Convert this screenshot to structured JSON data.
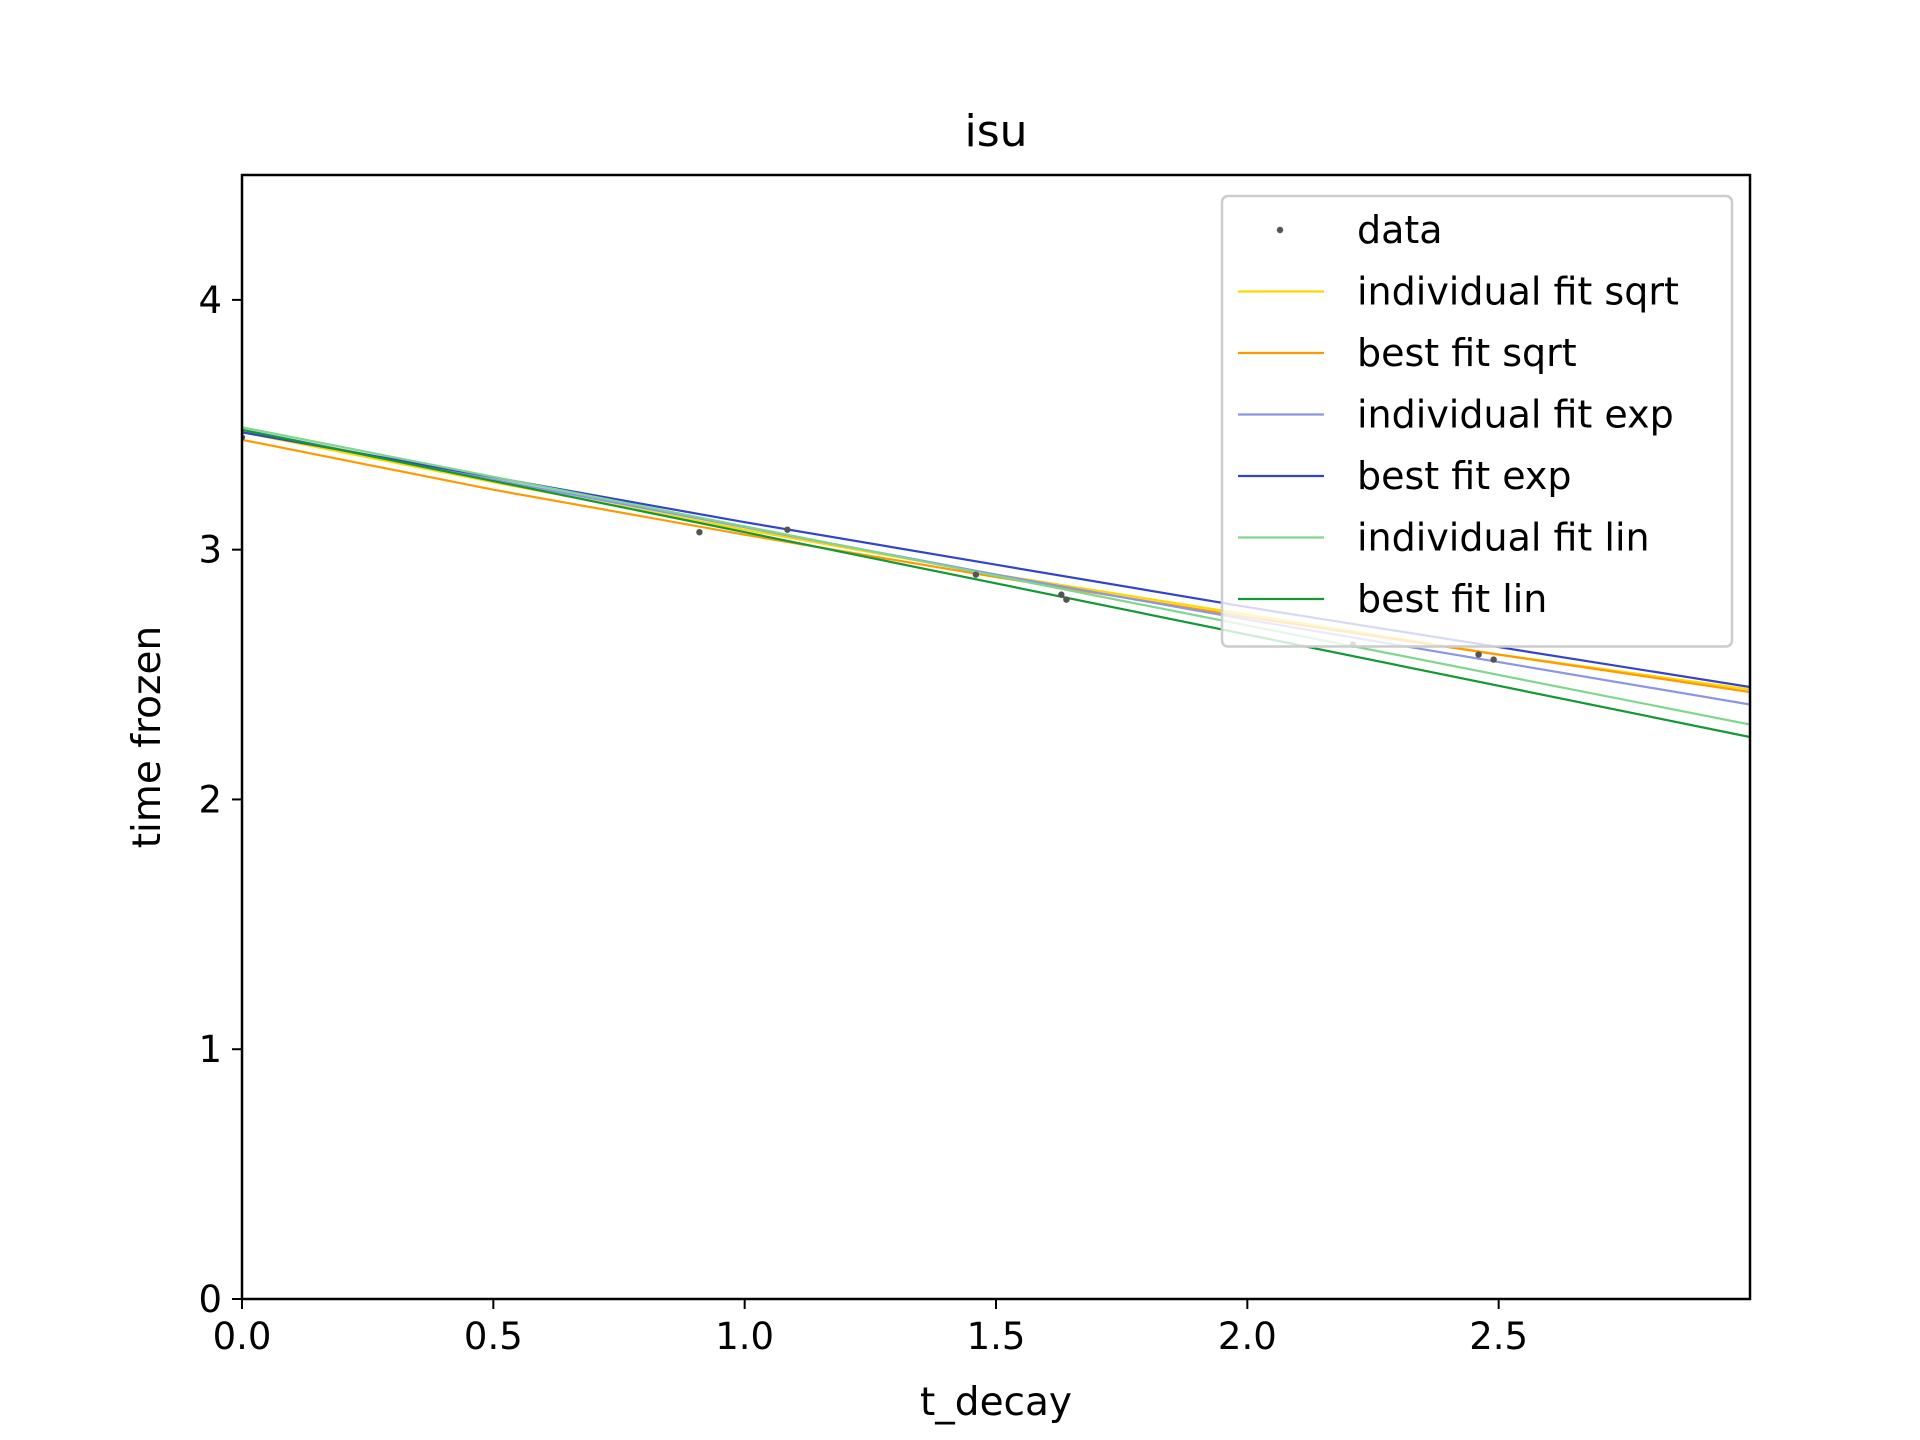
{
  "chart_data": {
    "type": "line",
    "title": "isu",
    "xlabel": "t_decay",
    "ylabel": "time frozen",
    "xlim": [
      0,
      3.0
    ],
    "ylim": [
      0,
      4.5
    ],
    "xticks": [
      "0.0",
      "0.5",
      "1.0",
      "1.5",
      "2.0",
      "2.5"
    ],
    "xtick_values": [
      0,
      0.5,
      1.0,
      1.5,
      2.0,
      2.5
    ],
    "yticks": [
      "0",
      "1",
      "2",
      "3",
      "4"
    ],
    "ytick_values": [
      0,
      1,
      2,
      3,
      4
    ],
    "grid": false,
    "legend_placement": "upper right",
    "data_points": {
      "name": "data",
      "color": "#555555",
      "x": [
        0.0,
        0.91,
        1.085,
        1.46,
        1.63,
        1.64,
        2.21,
        2.46,
        2.49
      ],
      "y": [
        3.45,
        3.07,
        3.08,
        2.9,
        2.82,
        2.8,
        2.62,
        2.58,
        2.56
      ]
    },
    "series": [
      {
        "name": "individual fit sqrt",
        "color": "#ffd700",
        "x": [
          0,
          0.5,
          1.0,
          1.5,
          2.0,
          2.5,
          3.0
        ],
        "y": [
          3.47,
          3.27,
          3.08,
          2.9,
          2.74,
          2.58,
          2.44
        ]
      },
      {
        "name": "best fit sqrt",
        "color": "#ff9900",
        "x": [
          0,
          0.5,
          1.0,
          1.5,
          2.0,
          2.5,
          3.0
        ],
        "y": [
          3.44,
          3.24,
          3.06,
          2.89,
          2.73,
          2.58,
          2.43
        ]
      },
      {
        "name": "individual fit exp",
        "color": "#8c96e6",
        "x": [
          0,
          0.5,
          1.0,
          1.5,
          2.0,
          2.5,
          3.0
        ],
        "y": [
          3.48,
          3.28,
          3.09,
          2.9,
          2.72,
          2.55,
          2.38
        ]
      },
      {
        "name": "best fit exp",
        "color": "#3344cc",
        "x": [
          0,
          0.5,
          1.0,
          1.5,
          2.0,
          2.5,
          3.0
        ],
        "y": [
          3.47,
          3.29,
          3.11,
          2.94,
          2.77,
          2.61,
          2.45
        ]
      },
      {
        "name": "individual fit lin",
        "color": "#7fd68c",
        "x": [
          0,
          3.0
        ],
        "y": [
          3.49,
          2.3
        ]
      },
      {
        "name": "best fit lin",
        "color": "#119933",
        "x": [
          0,
          3.0
        ],
        "y": [
          3.48,
          2.25
        ]
      }
    ]
  }
}
